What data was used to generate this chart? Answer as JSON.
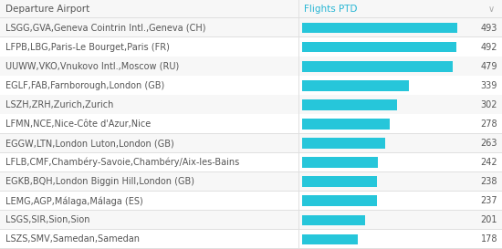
{
  "col1_header": "Departure Airport",
  "col2_header": "Flights PTD",
  "airports": [
    "LSGG,GVA,Geneva Cointrin Intl.,Geneva (CH)",
    "LFPB,LBG,Paris-Le Bourget,Paris (FR)",
    "UUWW,VKO,Vnukovo Intl.,Moscow (RU)",
    "EGLF,FAB,Farnborough,London (GB)",
    "LSZH,ZRH,Zurich,Zurich",
    "LFMN,NCE,Nice-Côte d'Azur,Nice",
    "EGGW,LTN,London Luton,London (GB)",
    "LFLB,CMF,Chambéry-Savoie,Chambéry/Aix-les-Bains",
    "EGKB,BQH,London Biggin Hill,London (GB)",
    "LEMG,AGP,Málaga,Málaga (ES)",
    "LSGS,SIR,Sion,Sion",
    "LSZS,SMV,Samedan,Samedan"
  ],
  "values": [
    493,
    492,
    479,
    339,
    302,
    278,
    263,
    242,
    238,
    237,
    201,
    178
  ],
  "bar_color": "#26c6da",
  "text_color": "#555555",
  "header_text_color": "#555555",
  "col2_header_color": "#29b6d4",
  "bg_color": "#ffffff",
  "header_bg_color": "#f7f7f7",
  "row_even_color": "#f7f7f7",
  "row_odd_color": "#ffffff",
  "border_color": "#e0e0e0",
  "value_color": "#555555",
  "arrow_color": "#aaaaaa",
  "bar_max": 520,
  "col_split": 0.595,
  "font_size": 7.0,
  "header_font_size": 7.5
}
